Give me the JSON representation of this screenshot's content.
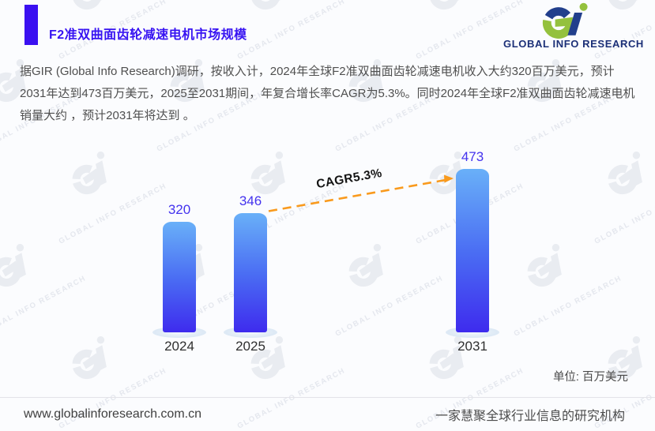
{
  "header": {
    "title": "F2准双曲面齿轮减速电机市场规模",
    "logo_brand": "GLOBAL INFO RESEARCH"
  },
  "summary": "据GIR (Global Info Research)调研，按收入计，2024年全球F2准双曲面齿轮减速电机收入大约320百万美元，预计2031年达到473百万美元，2025至2031期间，年复合增长率CAGR为5.3%。同时2024年全球F2准双曲面齿轮减速电机销量大约 ，预计2031年将达到 。",
  "chart_data": {
    "type": "bar",
    "title": "F2准双曲面齿轮减速电机市场规模",
    "categories": [
      "2024",
      "2025",
      "2031"
    ],
    "values": [
      320,
      346,
      473
    ],
    "value_labels": [
      "320",
      "346",
      "473"
    ],
    "annotation": "CAGR5.3%",
    "cagr_percent": 5.3,
    "unit_label": "单位: 百万美元",
    "unit": "百万美元",
    "ylim": [
      0,
      500
    ],
    "grid": false,
    "legend": false,
    "bar_color_top": "#69B0F8",
    "bar_color_bottom": "#3E2BEE",
    "trend_line_color": "#F99A1D",
    "value_label_color": "#4433EE"
  },
  "watermark": {
    "text": "GLOBAL INFO RESEARCH"
  },
  "footer": {
    "website": "www.globalinforesearch.com.cn",
    "tagline": "一家慧聚全球行业信息的研究机构"
  },
  "colors": {
    "accent": "#3A10F1",
    "title": "#3713F2",
    "logo_green": "#94C13D",
    "logo_navy": "#223F8C"
  }
}
